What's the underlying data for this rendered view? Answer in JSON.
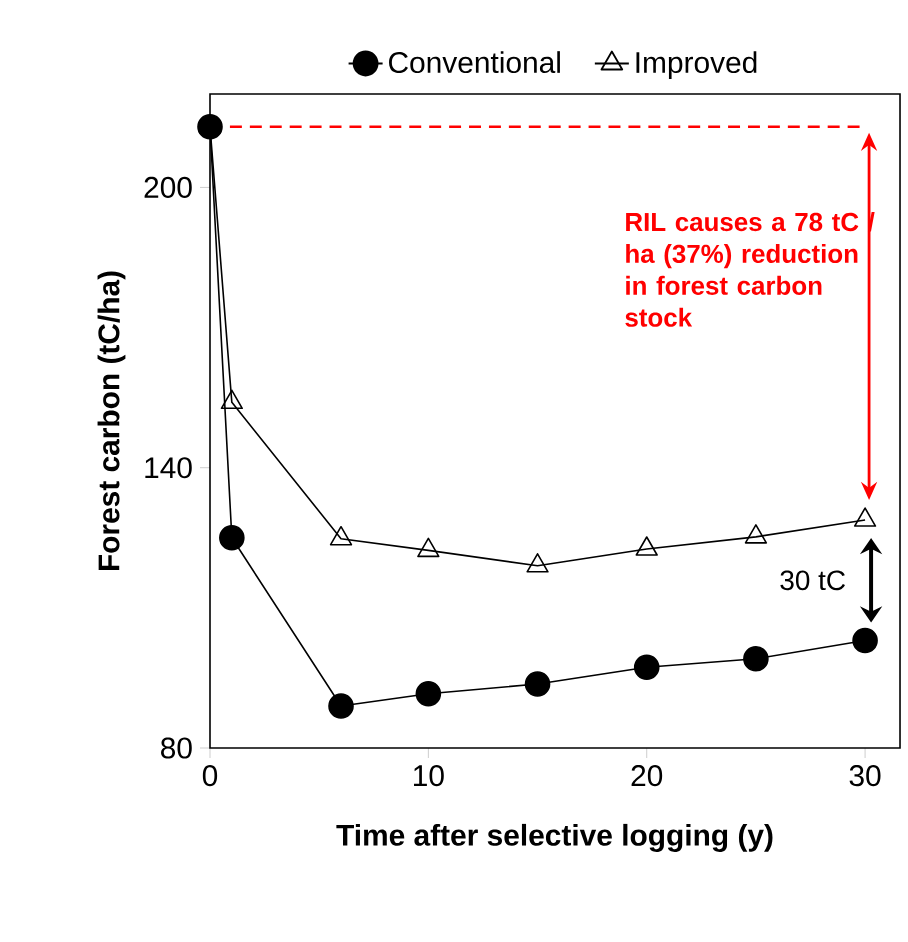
{
  "chart_data": {
    "type": "line",
    "xlabel": "Time after selective logging (y)",
    "ylabel": "Forest carbon (tC/ha)",
    "xlim": [
      0,
      31.6
    ],
    "xticks": [
      0,
      10,
      20,
      30
    ],
    "ylim": [
      80,
      220
    ],
    "yticks": [
      80,
      140,
      200
    ],
    "legend": "top",
    "grid": false,
    "series": [
      {
        "name": "Conventional",
        "color": "#000000",
        "marker": "circle",
        "x": [
          0,
          1,
          6,
          10,
          15,
          20,
          25,
          30
        ],
        "values": [
          213,
          125,
          89,
          91.6,
          93.7,
          97.3,
          99.1,
          103
        ]
      },
      {
        "name": "Improved",
        "color": "#000000",
        "marker": "triangle",
        "x": [
          0,
          1,
          6,
          10,
          15,
          20,
          25,
          30
        ],
        "values": [
          213,
          154,
          124.8,
          122.3,
          119,
          122.6,
          125.2,
          128.8
        ]
      }
    ],
    "ref_lines": [
      {
        "axis": "y",
        "value": 213,
        "color": "#ff0000",
        "line_style": "dashed"
      }
    ],
    "annotations": [
      "RIL causes a 78 tC / ha (37%) reduction in forest carbon stock",
      "30 tC"
    ]
  }
}
